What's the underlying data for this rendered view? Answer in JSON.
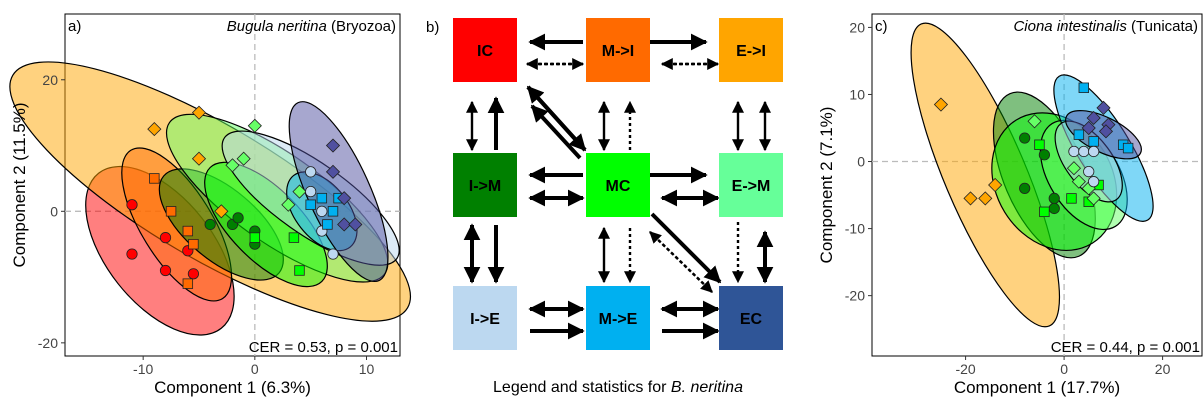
{
  "chart_data": [
    {
      "type": "scatter",
      "panel": "a)",
      "title_italic": "Bugula neritina",
      "title_plain": " (Bryozoa)",
      "xlabel": "Component 1 (6.3%)",
      "ylabel": "Component 2 (11.5%)",
      "xlim": [
        -17,
        13
      ],
      "ylim": [
        -22,
        30
      ],
      "xticks": [
        -10,
        0,
        10
      ],
      "yticks": [
        -20,
        0,
        20
      ],
      "annotation": "CER = 0.53, p = 0.001",
      "ellipses": [
        {
          "color": "#ff0000",
          "cx": -8.5,
          "cy": -6,
          "rx": 6,
          "ry": 13,
          "angle": 25
        },
        {
          "color": "#ffa500",
          "cx": -4,
          "cy": 3,
          "rx": 7.5,
          "ry": 25,
          "angle": 45
        },
        {
          "color": "#ff6a00",
          "cx": -7,
          "cy": -2,
          "rx": 4,
          "ry": 12,
          "angle": 20
        },
        {
          "color": "#008000",
          "cx": -3,
          "cy": -2,
          "rx": 4,
          "ry": 9,
          "angle": 35
        },
        {
          "color": "#66ff66",
          "cx": 2,
          "cy": 2,
          "rx": 5,
          "ry": 15,
          "angle": 40
        },
        {
          "color": "#00ff00",
          "cx": 1,
          "cy": -2,
          "rx": 4,
          "ry": 10,
          "angle": 30
        },
        {
          "color": "#bcd8f0",
          "cx": 5,
          "cy": 2,
          "rx": 4,
          "ry": 12,
          "angle": 40
        },
        {
          "color": "#00b0f0",
          "cx": 6,
          "cy": 0,
          "rx": 3,
          "ry": 6,
          "angle": 25
        },
        {
          "color": "#5050a0",
          "cx": 7.5,
          "cy": 3,
          "rx": 3.5,
          "ry": 14,
          "angle": 15
        }
      ],
      "points": [
        {
          "shape": "circle",
          "color": "#ff0000",
          "x": -11,
          "y": 1
        },
        {
          "shape": "circle",
          "color": "#ff0000",
          "x": -11,
          "y": -6.5
        },
        {
          "shape": "circle",
          "color": "#ff0000",
          "x": -8,
          "y": -4
        },
        {
          "shape": "circle",
          "color": "#ff0000",
          "x": -8,
          "y": -9
        },
        {
          "shape": "circle",
          "color": "#ff0000",
          "x": -6,
          "y": -6
        },
        {
          "shape": "circle",
          "color": "#ff0000",
          "x": -5.5,
          "y": -9.5
        },
        {
          "shape": "square",
          "color": "#ff6a00",
          "x": -9,
          "y": 5
        },
        {
          "shape": "square",
          "color": "#ff6a00",
          "x": -7.5,
          "y": 0
        },
        {
          "shape": "square",
          "color": "#ff6a00",
          "x": -6,
          "y": -3
        },
        {
          "shape": "square",
          "color": "#ff6a00",
          "x": -5.5,
          "y": -5
        },
        {
          "shape": "square",
          "color": "#ff6a00",
          "x": -6,
          "y": -11
        },
        {
          "shape": "diamond",
          "color": "#ffa500",
          "x": -9,
          "y": 12.5
        },
        {
          "shape": "diamond",
          "color": "#ffa500",
          "x": -5,
          "y": 15
        },
        {
          "shape": "diamond",
          "color": "#ffa500",
          "x": -5,
          "y": 8
        },
        {
          "shape": "diamond",
          "color": "#ffa500",
          "x": -3,
          "y": 0
        },
        {
          "shape": "circle",
          "color": "#008000",
          "x": -4,
          "y": -2
        },
        {
          "shape": "circle",
          "color": "#008000",
          "x": -2,
          "y": -2
        },
        {
          "shape": "circle",
          "color": "#008000",
          "x": -1.5,
          "y": -1
        },
        {
          "shape": "circle",
          "color": "#008000",
          "x": 0,
          "y": -3
        },
        {
          "shape": "circle",
          "color": "#008000",
          "x": 0,
          "y": -5
        },
        {
          "shape": "square",
          "color": "#00ff00",
          "x": 0,
          "y": -4
        },
        {
          "shape": "square",
          "color": "#00ff00",
          "x": 3.5,
          "y": -4
        },
        {
          "shape": "square",
          "color": "#00ff00",
          "x": 4,
          "y": -9
        },
        {
          "shape": "diamond",
          "color": "#66ff66",
          "x": -1,
          "y": 8
        },
        {
          "shape": "diamond",
          "color": "#66ff66",
          "x": -2,
          "y": 7
        },
        {
          "shape": "diamond",
          "color": "#66ff66",
          "x": 0,
          "y": 13
        },
        {
          "shape": "diamond",
          "color": "#66ff66",
          "x": 3,
          "y": 1
        },
        {
          "shape": "diamond",
          "color": "#66ff66",
          "x": 4,
          "y": 3
        },
        {
          "shape": "circle",
          "color": "#bcd8f0",
          "x": 5,
          "y": 6
        },
        {
          "shape": "circle",
          "color": "#bcd8f0",
          "x": 5,
          "y": 3
        },
        {
          "shape": "circle",
          "color": "#bcd8f0",
          "x": 6,
          "y": 0
        },
        {
          "shape": "circle",
          "color": "#bcd8f0",
          "x": 6,
          "y": -3
        },
        {
          "shape": "circle",
          "color": "#bcd8f0",
          "x": 7,
          "y": -6.5
        },
        {
          "shape": "square",
          "color": "#00b0f0",
          "x": 5,
          "y": 1
        },
        {
          "shape": "square",
          "color": "#00b0f0",
          "x": 6,
          "y": 2
        },
        {
          "shape": "square",
          "color": "#00b0f0",
          "x": 7,
          "y": 0
        },
        {
          "shape": "square",
          "color": "#00b0f0",
          "x": 6.5,
          "y": -2
        },
        {
          "shape": "square",
          "color": "#00b0f0",
          "x": 7.5,
          "y": 2
        },
        {
          "shape": "diamond",
          "color": "#5050a0",
          "x": 7,
          "y": 10
        },
        {
          "shape": "diamond",
          "color": "#5050a0",
          "x": 7,
          "y": 6
        },
        {
          "shape": "diamond",
          "color": "#5050a0",
          "x": 8,
          "y": 2
        },
        {
          "shape": "diamond",
          "color": "#5050a0",
          "x": 8,
          "y": -2
        },
        {
          "shape": "diamond",
          "color": "#5050a0",
          "x": 9,
          "y": -2
        }
      ]
    },
    {
      "type": "scatter",
      "panel": "c)",
      "title_italic": "Ciona intestinalis",
      "title_plain": " (Tunicata)",
      "xlabel": "Component 1 (17.7%)",
      "ylabel": "Component 2 (7.1%)",
      "xlim": [
        -39,
        28
      ],
      "ylim": [
        -29,
        22
      ],
      "xticks": [
        -20,
        0,
        20
      ],
      "yticks": [
        -20,
        -10,
        0,
        10,
        20
      ],
      "annotation": "CER = 0.44, p = 0.001",
      "ellipses": [
        {
          "color": "#ffa500",
          "cx": -16,
          "cy": -2,
          "rx": 7,
          "ry": 26,
          "angle": 30
        },
        {
          "color": "#008000",
          "cx": -4,
          "cy": -2,
          "rx": 7,
          "ry": 14,
          "angle": 30
        },
        {
          "color": "#00ff00",
          "cx": -2,
          "cy": -3,
          "rx": 10,
          "ry": 12,
          "angle": 40
        },
        {
          "color": "#66ff66",
          "cx": 4,
          "cy": -2,
          "rx": 6,
          "ry": 10,
          "angle": 40
        },
        {
          "color": "#00b0f0",
          "cx": 8,
          "cy": 2,
          "rx": 4.5,
          "ry": 14,
          "angle": 40
        },
        {
          "color": "#bcd8f0",
          "cx": 5,
          "cy": 0,
          "rx": 4,
          "ry": 8,
          "angle": 45
        },
        {
          "color": "#5050a0",
          "cx": 8,
          "cy": 4,
          "rx": 3,
          "ry": 8,
          "angle": 70
        }
      ],
      "points": [
        {
          "shape": "diamond",
          "color": "#ffa500",
          "x": -25,
          "y": 8.5
        },
        {
          "shape": "diamond",
          "color": "#ffa500",
          "x": -19,
          "y": -5.5
        },
        {
          "shape": "diamond",
          "color": "#ffa500",
          "x": -16,
          "y": -5.5
        },
        {
          "shape": "diamond",
          "color": "#ffa500",
          "x": -14,
          "y": -3.5
        },
        {
          "shape": "circle",
          "color": "#008000",
          "x": -8,
          "y": 3.5
        },
        {
          "shape": "circle",
          "color": "#008000",
          "x": -8,
          "y": -4
        },
        {
          "shape": "circle",
          "color": "#008000",
          "x": -4,
          "y": 1
        },
        {
          "shape": "circle",
          "color": "#008000",
          "x": -2,
          "y": -5.5
        },
        {
          "shape": "circle",
          "color": "#008000",
          "x": -2,
          "y": -7
        },
        {
          "shape": "square",
          "color": "#00ff00",
          "x": -5,
          "y": 2.5
        },
        {
          "shape": "square",
          "color": "#00ff00",
          "x": -4,
          "y": -7.5
        },
        {
          "shape": "square",
          "color": "#00ff00",
          "x": 1.5,
          "y": -5.5
        },
        {
          "shape": "square",
          "color": "#00ff00",
          "x": 5,
          "y": -6
        },
        {
          "shape": "square",
          "color": "#00ff00",
          "x": 7,
          "y": -3.5
        },
        {
          "shape": "diamond",
          "color": "#66ff66",
          "x": -6,
          "y": 6
        },
        {
          "shape": "diamond",
          "color": "#66ff66",
          "x": 2,
          "y": -1
        },
        {
          "shape": "diamond",
          "color": "#66ff66",
          "x": 3,
          "y": -3
        },
        {
          "shape": "diamond",
          "color": "#66ff66",
          "x": 5,
          "y": -4
        },
        {
          "shape": "diamond",
          "color": "#66ff66",
          "x": 6,
          "y": -5.5
        },
        {
          "shape": "circle",
          "color": "#bcd8f0",
          "x": 2,
          "y": 1.5
        },
        {
          "shape": "circle",
          "color": "#bcd8f0",
          "x": 4,
          "y": 1.5
        },
        {
          "shape": "circle",
          "color": "#bcd8f0",
          "x": 6,
          "y": 1.5
        },
        {
          "shape": "circle",
          "color": "#bcd8f0",
          "x": 5,
          "y": -1.5
        },
        {
          "shape": "circle",
          "color": "#bcd8f0",
          "x": 6,
          "y": -3
        },
        {
          "shape": "square",
          "color": "#00b0f0",
          "x": 4,
          "y": 11
        },
        {
          "shape": "square",
          "color": "#00b0f0",
          "x": 3,
          "y": 4
        },
        {
          "shape": "square",
          "color": "#00b0f0",
          "x": 6,
          "y": 3
        },
        {
          "shape": "square",
          "color": "#00b0f0",
          "x": 12,
          "y": 2.5
        },
        {
          "shape": "square",
          "color": "#00b0f0",
          "x": 13,
          "y": 2
        },
        {
          "shape": "diamond",
          "color": "#5050a0",
          "x": 5,
          "y": 5
        },
        {
          "shape": "diamond",
          "color": "#5050a0",
          "x": 6,
          "y": 6.5
        },
        {
          "shape": "diamond",
          "color": "#5050a0",
          "x": 8,
          "y": 8
        },
        {
          "shape": "diamond",
          "color": "#5050a0",
          "x": 9,
          "y": 5.5
        },
        {
          "shape": "diamond",
          "color": "#5050a0",
          "x": 8.5,
          "y": 4.5
        }
      ]
    }
  ],
  "legend_panel": {
    "label": "b)",
    "caption": "Legend and statistics for ",
    "caption_italic": "B. neritina",
    "boxes": [
      {
        "id": "IC",
        "label": "IC",
        "color": "#ff0000",
        "col": 0,
        "row": 0
      },
      {
        "id": "MI",
        "label": "M->I",
        "color": "#ff6a00",
        "col": 1,
        "row": 0
      },
      {
        "id": "EI",
        "label": "E->I",
        "color": "#ffa500",
        "col": 2,
        "row": 0
      },
      {
        "id": "IM",
        "label": "I->M",
        "color": "#008000",
        "col": 0,
        "row": 1
      },
      {
        "id": "MC",
        "label": "MC",
        "color": "#00ff00",
        "col": 1,
        "row": 1
      },
      {
        "id": "EM",
        "label": "E->M",
        "color": "#66ff99",
        "col": 2,
        "row": 1
      },
      {
        "id": "IE",
        "label": "I->E",
        "color": "#bcd8f0",
        "col": 0,
        "row": 2
      },
      {
        "id": "ME",
        "label": "M->E",
        "color": "#00b0f0",
        "col": 1,
        "row": 2
      },
      {
        "id": "EC",
        "label": "EC",
        "color": "#2f5597",
        "col": 2,
        "row": 2
      }
    ]
  }
}
